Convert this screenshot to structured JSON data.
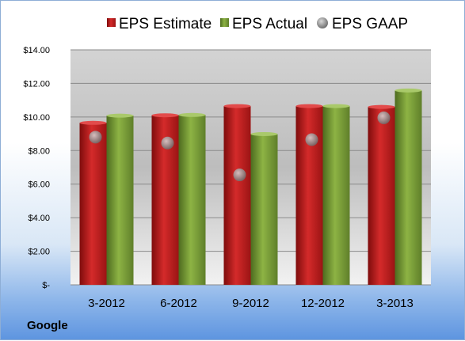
{
  "company": "Google",
  "chart_data": {
    "type": "bar",
    "categories": [
      "3-2012",
      "6-2012",
      "9-2012",
      "12-2012",
      "3-2013"
    ],
    "series": [
      {
        "name": "EPS Estimate",
        "kind": "bar",
        "color": "#cc1f1f",
        "values": [
          9.65,
          10.1,
          10.65,
          10.65,
          10.6
        ]
      },
      {
        "name": "EPS Actual",
        "kind": "bar",
        "color": "#7fa33a",
        "values": [
          10.08,
          10.12,
          8.98,
          10.65,
          11.58
        ]
      },
      {
        "name": "EPS GAAP",
        "kind": "marker",
        "color": "#9a9a9a",
        "values": [
          8.8,
          8.45,
          6.55,
          8.65,
          9.95
        ]
      }
    ],
    "y_ticks": [
      "$-",
      "$2.00",
      "$4.00",
      "$6.00",
      "$8.00",
      "$10.00",
      "$12.00",
      "$14.00"
    ],
    "ylim": [
      0,
      14
    ],
    "grid": true,
    "legend_position": "top"
  }
}
